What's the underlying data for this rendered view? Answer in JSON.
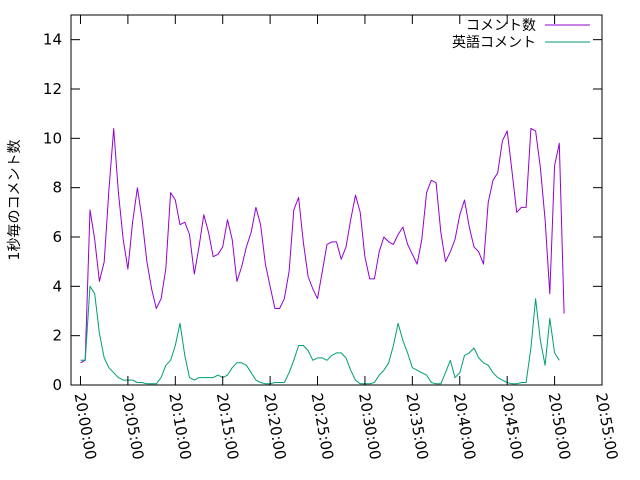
{
  "chart_data": {
    "type": "line",
    "title": "",
    "xlabel": "",
    "ylabel": "1秒毎のコメント数",
    "ylim": [
      0,
      15
    ],
    "yticks": [
      0,
      2,
      4,
      6,
      8,
      10,
      12,
      14
    ],
    "xlim": [
      "19:59:00",
      "20:55:00"
    ],
    "xticks": [
      "20:00:00",
      "20:05:00",
      "20:10:00",
      "20:15:00",
      "20:20:00",
      "20:25:00",
      "20:30:00",
      "20:35:00",
      "20:40:00",
      "20:45:00",
      "20:50:00",
      "20:55:00"
    ],
    "grid": false,
    "legend_position": "top-right",
    "series": [
      {
        "name": "コメント数",
        "color": "#9400d3",
        "points": [
          [
            "20:00:00",
            0.9
          ],
          [
            "20:00:30",
            1.0
          ],
          [
            "20:01:00",
            7.1
          ],
          [
            "20:01:30",
            5.9
          ],
          [
            "20:02:00",
            4.2
          ],
          [
            "20:02:30",
            5.0
          ],
          [
            "20:03:00",
            7.9
          ],
          [
            "20:03:30",
            10.4
          ],
          [
            "20:04:00",
            7.8
          ],
          [
            "20:04:30",
            5.9
          ],
          [
            "20:05:00",
            4.7
          ],
          [
            "20:05:30",
            6.6
          ],
          [
            "20:06:00",
            8.0
          ],
          [
            "20:06:30",
            6.7
          ],
          [
            "20:07:00",
            5.0
          ],
          [
            "20:07:30",
            3.9
          ],
          [
            "20:08:00",
            3.1
          ],
          [
            "20:08:30",
            3.5
          ],
          [
            "20:09:00",
            4.7
          ],
          [
            "20:09:30",
            7.8
          ],
          [
            "20:10:00",
            7.5
          ],
          [
            "20:10:30",
            6.5
          ],
          [
            "20:11:00",
            6.6
          ],
          [
            "20:11:30",
            6.1
          ],
          [
            "20:12:00",
            4.5
          ],
          [
            "20:12:30",
            5.6
          ],
          [
            "20:13:00",
            6.9
          ],
          [
            "20:13:30",
            6.2
          ],
          [
            "20:14:00",
            5.2
          ],
          [
            "20:14:30",
            5.3
          ],
          [
            "20:15:00",
            5.6
          ],
          [
            "20:15:30",
            6.7
          ],
          [
            "20:16:00",
            5.9
          ],
          [
            "20:16:30",
            4.2
          ],
          [
            "20:17:00",
            4.8
          ],
          [
            "20:17:30",
            5.6
          ],
          [
            "20:18:00",
            6.2
          ],
          [
            "20:18:30",
            7.2
          ],
          [
            "20:19:00",
            6.5
          ],
          [
            "20:19:30",
            4.9
          ],
          [
            "20:20:00",
            4.0
          ],
          [
            "20:20:30",
            3.1
          ],
          [
            "20:21:00",
            3.1
          ],
          [
            "20:21:30",
            3.5
          ],
          [
            "20:22:00",
            4.6
          ],
          [
            "20:22:30",
            7.1
          ],
          [
            "20:23:00",
            7.6
          ],
          [
            "20:23:30",
            5.8
          ],
          [
            "20:24:00",
            4.4
          ],
          [
            "20:24:30",
            3.9
          ],
          [
            "20:25:00",
            3.5
          ],
          [
            "20:25:30",
            4.6
          ],
          [
            "20:26:00",
            5.7
          ],
          [
            "20:26:30",
            5.8
          ],
          [
            "20:27:00",
            5.8
          ],
          [
            "20:27:30",
            5.1
          ],
          [
            "20:28:00",
            5.6
          ],
          [
            "20:28:30",
            6.7
          ],
          [
            "20:29:00",
            7.7
          ],
          [
            "20:29:30",
            7.0
          ],
          [
            "20:30:00",
            5.2
          ],
          [
            "20:30:30",
            4.3
          ],
          [
            "20:31:00",
            4.3
          ],
          [
            "20:31:30",
            5.4
          ],
          [
            "20:32:00",
            6.0
          ],
          [
            "20:32:30",
            5.8
          ],
          [
            "20:33:00",
            5.7
          ],
          [
            "20:33:30",
            6.1
          ],
          [
            "20:34:00",
            6.4
          ],
          [
            "20:34:30",
            5.7
          ],
          [
            "20:35:00",
            5.3
          ],
          [
            "20:35:30",
            4.9
          ],
          [
            "20:36:00",
            5.9
          ],
          [
            "20:36:30",
            7.8
          ],
          [
            "20:37:00",
            8.3
          ],
          [
            "20:37:30",
            8.2
          ],
          [
            "20:38:00",
            6.2
          ],
          [
            "20:38:30",
            5.0
          ],
          [
            "20:39:00",
            5.4
          ],
          [
            "20:39:30",
            5.9
          ],
          [
            "20:40:00",
            6.9
          ],
          [
            "20:40:30",
            7.5
          ],
          [
            "20:41:00",
            6.4
          ],
          [
            "20:41:30",
            5.6
          ],
          [
            "20:42:00",
            5.4
          ],
          [
            "20:42:30",
            4.9
          ],
          [
            "20:43:00",
            7.4
          ],
          [
            "20:43:30",
            8.3
          ],
          [
            "20:44:00",
            8.6
          ],
          [
            "20:44:30",
            9.9
          ],
          [
            "20:45:00",
            10.3
          ],
          [
            "20:45:30",
            8.7
          ],
          [
            "20:46:00",
            7.0
          ],
          [
            "20:46:30",
            7.2
          ],
          [
            "20:47:00",
            7.2
          ],
          [
            "20:47:30",
            10.4
          ],
          [
            "20:48:00",
            10.3
          ],
          [
            "20:48:30",
            8.8
          ],
          [
            "20:49:00",
            6.7
          ],
          [
            "20:49:30",
            3.7
          ],
          [
            "20:50:00",
            8.9
          ],
          [
            "20:50:30",
            9.8
          ],
          [
            "20:51:00",
            2.9
          ]
        ]
      },
      {
        "name": "英語コメント",
        "color": "#009e73",
        "points": [
          [
            "20:00:00",
            1.0
          ],
          [
            "20:00:30",
            1.0
          ],
          [
            "20:01:00",
            4.0
          ],
          [
            "20:01:30",
            3.7
          ],
          [
            "20:02:00",
            2.1
          ],
          [
            "20:02:30",
            1.1
          ],
          [
            "20:03:00",
            0.7
          ],
          [
            "20:03:30",
            0.5
          ],
          [
            "20:04:00",
            0.3
          ],
          [
            "20:04:30",
            0.2
          ],
          [
            "20:05:00",
            0.2
          ],
          [
            "20:05:30",
            0.2
          ],
          [
            "20:06:00",
            0.1
          ],
          [
            "20:06:30",
            0.1
          ],
          [
            "20:07:00",
            0.05
          ],
          [
            "20:07:30",
            0.05
          ],
          [
            "20:08:00",
            0.05
          ],
          [
            "20:08:30",
            0.3
          ],
          [
            "20:09:00",
            0.8
          ],
          [
            "20:09:30",
            1.0
          ],
          [
            "20:10:00",
            1.6
          ],
          [
            "20:10:30",
            2.5
          ],
          [
            "20:11:00",
            1.2
          ],
          [
            "20:11:30",
            0.3
          ],
          [
            "20:12:00",
            0.2
          ],
          [
            "20:12:30",
            0.3
          ],
          [
            "20:13:00",
            0.3
          ],
          [
            "20:13:30",
            0.3
          ],
          [
            "20:14:00",
            0.3
          ],
          [
            "20:14:30",
            0.4
          ],
          [
            "20:15:00",
            0.3
          ],
          [
            "20:15:30",
            0.4
          ],
          [
            "20:16:00",
            0.7
          ],
          [
            "20:16:30",
            0.9
          ],
          [
            "20:17:00",
            0.9
          ],
          [
            "20:17:30",
            0.8
          ],
          [
            "20:18:00",
            0.5
          ],
          [
            "20:18:30",
            0.2
          ],
          [
            "20:19:00",
            0.1
          ],
          [
            "20:19:30",
            0.05
          ],
          [
            "20:20:00",
            0.05
          ],
          [
            "20:20:30",
            0.1
          ],
          [
            "20:21:00",
            0.1
          ],
          [
            "20:21:30",
            0.1
          ],
          [
            "20:22:00",
            0.5
          ],
          [
            "20:22:30",
            1.0
          ],
          [
            "20:23:00",
            1.6
          ],
          [
            "20:23:30",
            1.6
          ],
          [
            "20:24:00",
            1.4
          ],
          [
            "20:24:30",
            1.0
          ],
          [
            "20:25:00",
            1.1
          ],
          [
            "20:25:30",
            1.1
          ],
          [
            "20:26:00",
            1.0
          ],
          [
            "20:26:30",
            1.2
          ],
          [
            "20:27:00",
            1.3
          ],
          [
            "20:27:30",
            1.3
          ],
          [
            "20:28:00",
            1.1
          ],
          [
            "20:28:30",
            0.6
          ],
          [
            "20:29:00",
            0.2
          ],
          [
            "20:29:30",
            0.05
          ],
          [
            "20:30:00",
            0.05
          ],
          [
            "20:30:30",
            0.05
          ],
          [
            "20:31:00",
            0.1
          ],
          [
            "20:31:30",
            0.4
          ],
          [
            "20:32:00",
            0.6
          ],
          [
            "20:32:30",
            0.9
          ],
          [
            "20:33:00",
            1.6
          ],
          [
            "20:33:30",
            2.5
          ],
          [
            "20:34:00",
            1.8
          ],
          [
            "20:34:30",
            1.3
          ],
          [
            "20:35:00",
            0.7
          ],
          [
            "20:35:30",
            0.6
          ],
          [
            "20:36:00",
            0.5
          ],
          [
            "20:36:30",
            0.4
          ],
          [
            "20:37:00",
            0.1
          ],
          [
            "20:37:30",
            0.05
          ],
          [
            "20:38:00",
            0.05
          ],
          [
            "20:38:30",
            0.5
          ],
          [
            "20:39:00",
            1.0
          ],
          [
            "20:39:30",
            0.3
          ],
          [
            "20:40:00",
            0.5
          ],
          [
            "20:40:30",
            1.2
          ],
          [
            "20:41:00",
            1.3
          ],
          [
            "20:41:30",
            1.5
          ],
          [
            "20:42:00",
            1.1
          ],
          [
            "20:42:30",
            0.9
          ],
          [
            "20:43:00",
            0.8
          ],
          [
            "20:43:30",
            0.5
          ],
          [
            "20:44:00",
            0.3
          ],
          [
            "20:44:30",
            0.2
          ],
          [
            "20:45:00",
            0.1
          ],
          [
            "20:45:30",
            0.05
          ],
          [
            "20:46:00",
            0.05
          ],
          [
            "20:46:30",
            0.1
          ],
          [
            "20:47:00",
            0.1
          ],
          [
            "20:47:30",
            1.5
          ],
          [
            "20:48:00",
            3.5
          ],
          [
            "20:48:30",
            1.8
          ],
          [
            "20:49:00",
            0.8
          ],
          [
            "20:49:30",
            2.7
          ],
          [
            "20:50:00",
            1.3
          ],
          [
            "20:50:30",
            1.0
          ]
        ]
      }
    ]
  }
}
